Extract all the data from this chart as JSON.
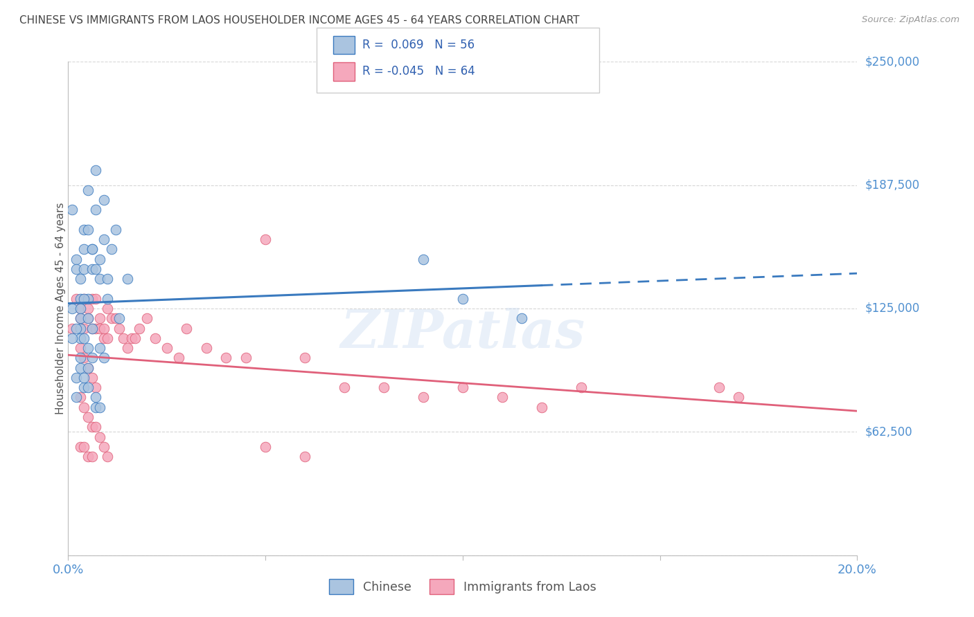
{
  "title": "CHINESE VS IMMIGRANTS FROM LAOS HOUSEHOLDER INCOME AGES 45 - 64 YEARS CORRELATION CHART",
  "source": "Source: ZipAtlas.com",
  "ylabel": "Householder Income Ages 45 - 64 years",
  "xlim": [
    0.0,
    0.2
  ],
  "ylim": [
    0,
    250000
  ],
  "yticks": [
    0,
    62500,
    125000,
    187500,
    250000
  ],
  "ytick_labels": [
    "",
    "$62,500",
    "$125,000",
    "$187,500",
    "$250,000"
  ],
  "xticks": [
    0.0,
    0.05,
    0.1,
    0.15,
    0.2
  ],
  "xtick_labels": [
    "0.0%",
    "",
    "",
    "",
    "20.0%"
  ],
  "chinese_color": "#aac4e0",
  "laos_color": "#f5a8bc",
  "chinese_line_color": "#3a7abf",
  "laos_line_color": "#e0607a",
  "r_chinese": 0.069,
  "n_chinese": 56,
  "r_laos": -0.045,
  "n_laos": 64,
  "watermark": "ZIPatlas",
  "background_color": "#ffffff",
  "grid_color": "#cccccc",
  "title_color": "#444444",
  "axis_label_color": "#555555",
  "ytick_color": "#5090d0",
  "xtick_color": "#5090d0",
  "legend_text_color": "#3060b0",
  "source_color": "#999999",
  "chinese_x": [
    0.001,
    0.001,
    0.002,
    0.002,
    0.003,
    0.003,
    0.003,
    0.003,
    0.004,
    0.004,
    0.004,
    0.005,
    0.005,
    0.005,
    0.006,
    0.006,
    0.007,
    0.007,
    0.008,
    0.008,
    0.009,
    0.009,
    0.01,
    0.01,
    0.011,
    0.012,
    0.013,
    0.015,
    0.002,
    0.003,
    0.004,
    0.005,
    0.006,
    0.007,
    0.008,
    0.009,
    0.003,
    0.004,
    0.005,
    0.006,
    0.002,
    0.003,
    0.003,
    0.004,
    0.004,
    0.005,
    0.005,
    0.006,
    0.007,
    0.007,
    0.001,
    0.002,
    0.008,
    0.09,
    0.1,
    0.115
  ],
  "chinese_y": [
    125000,
    175000,
    150000,
    145000,
    130000,
    125000,
    120000,
    115000,
    165000,
    155000,
    145000,
    185000,
    165000,
    130000,
    155000,
    145000,
    195000,
    175000,
    150000,
    140000,
    180000,
    160000,
    140000,
    130000,
    155000,
    165000,
    120000,
    140000,
    115000,
    110000,
    110000,
    105000,
    155000,
    145000,
    105000,
    100000,
    140000,
    130000,
    120000,
    115000,
    90000,
    95000,
    100000,
    85000,
    90000,
    95000,
    85000,
    100000,
    80000,
    75000,
    110000,
    80000,
    75000,
    150000,
    130000,
    120000
  ],
  "laos_x": [
    0.001,
    0.002,
    0.003,
    0.003,
    0.004,
    0.004,
    0.005,
    0.005,
    0.006,
    0.006,
    0.007,
    0.007,
    0.008,
    0.008,
    0.009,
    0.009,
    0.01,
    0.01,
    0.011,
    0.012,
    0.013,
    0.014,
    0.015,
    0.016,
    0.017,
    0.018,
    0.02,
    0.022,
    0.025,
    0.028,
    0.03,
    0.035,
    0.04,
    0.045,
    0.05,
    0.06,
    0.07,
    0.08,
    0.09,
    0.1,
    0.11,
    0.12,
    0.13,
    0.003,
    0.004,
    0.005,
    0.006,
    0.007,
    0.003,
    0.004,
    0.005,
    0.006,
    0.007,
    0.008,
    0.009,
    0.01,
    0.003,
    0.004,
    0.005,
    0.006,
    0.165,
    0.17,
    0.05,
    0.06
  ],
  "laos_y": [
    115000,
    130000,
    125000,
    120000,
    130000,
    115000,
    125000,
    120000,
    130000,
    115000,
    130000,
    115000,
    120000,
    115000,
    115000,
    110000,
    125000,
    110000,
    120000,
    120000,
    115000,
    110000,
    105000,
    110000,
    110000,
    115000,
    120000,
    110000,
    105000,
    100000,
    115000,
    105000,
    100000,
    100000,
    160000,
    100000,
    85000,
    85000,
    80000,
    85000,
    80000,
    75000,
    85000,
    105000,
    100000,
    95000,
    90000,
    85000,
    80000,
    75000,
    70000,
    65000,
    65000,
    60000,
    55000,
    50000,
    55000,
    55000,
    50000,
    50000,
    85000,
    80000,
    55000,
    50000
  ]
}
